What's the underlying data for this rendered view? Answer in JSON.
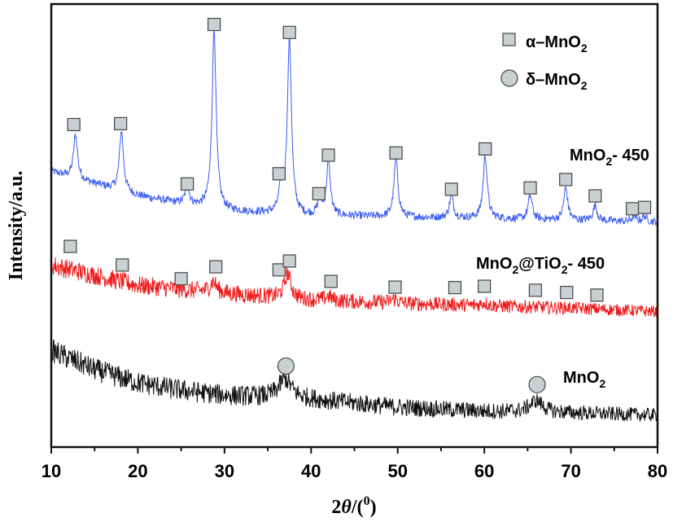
{
  "chart_data": {
    "type": "line",
    "xlabel_prefix": "2",
    "xlabel_theta": "θ",
    "xlabel_suffix": "/(",
    "xlabel_sup": "0",
    "xlabel_close": ")",
    "ylabel": "Intensity/a.u.",
    "xlim": [
      10,
      80
    ],
    "ylim": [
      0,
      100
    ],
    "xticks": [
      10,
      20,
      30,
      40,
      50,
      60,
      70,
      80
    ],
    "grid": false,
    "legend_position": "top-right",
    "legend": [
      {
        "marker": "square",
        "prefix": "α–MnO",
        "sub": "2"
      },
      {
        "marker": "circle",
        "prefix": "δ–MnO",
        "sub": "2"
      }
    ],
    "marker_fill": "#c8d0d2",
    "series": [
      {
        "name_prefix": "MnO",
        "name_sub": "2",
        "name_suffix": "- 450",
        "color": "#3b5cf0",
        "background": [
          [
            10,
            62.2
          ],
          [
            15,
            59.4
          ],
          [
            20,
            56.7
          ],
          [
            25,
            54.9
          ],
          [
            30,
            53.4
          ],
          [
            35,
            52.7
          ],
          [
            40,
            52.1
          ],
          [
            45,
            52.1
          ],
          [
            50,
            51.9
          ],
          [
            60,
            51.6
          ],
          [
            70,
            51.2
          ],
          [
            80,
            50.8
          ]
        ],
        "peaks": [
          [
            12.8,
            70.5
          ],
          [
            18.1,
            71.4
          ],
          [
            25.7,
            58.9
          ],
          [
            28.8,
            94.3
          ],
          [
            36.6,
            59.4
          ],
          [
            37.5,
            91.9
          ],
          [
            41.0,
            55.8
          ],
          [
            42.0,
            64.0
          ],
          [
            49.8,
            65.0
          ],
          [
            56.2,
            56.7
          ],
          [
            60.1,
            65.9
          ],
          [
            65.3,
            56.7
          ],
          [
            69.4,
            58.5
          ],
          [
            72.8,
            54.5
          ],
          [
            77.3,
            52.1
          ],
          [
            78.5,
            52.1
          ]
        ],
        "markers": {
          "type": "square",
          "points": [
            [
              12.6,
              72.8
            ],
            [
              18.0,
              73.0
            ],
            [
              25.7,
              59.4
            ],
            [
              28.8,
              95.4
            ],
            [
              36.3,
              61.7
            ],
            [
              37.5,
              93.6
            ],
            [
              40.9,
              57.2
            ],
            [
              42.0,
              65.9
            ],
            [
              49.8,
              66.4
            ],
            [
              56.2,
              58.2
            ],
            [
              60.1,
              67.3
            ],
            [
              65.3,
              58.5
            ],
            [
              69.4,
              60.4
            ],
            [
              72.8,
              56.7
            ],
            [
              77.1,
              53.8
            ],
            [
              78.5,
              54.1
            ]
          ]
        }
      },
      {
        "name_prefix": "MnO",
        "name_sub": "2",
        "name_mid": "@TiO",
        "name_sub2": "2",
        "name_suffix": "- 450",
        "color": "#f01818",
        "background": [
          [
            10,
            41.1
          ],
          [
            20,
            36.5
          ],
          [
            30,
            34.7
          ],
          [
            40,
            33.2
          ],
          [
            50,
            32.5
          ],
          [
            60,
            31.9
          ],
          [
            70,
            31.4
          ],
          [
            80,
            30.6
          ]
        ],
        "peaks": [
          [
            28.7,
            37.4
          ],
          [
            37.3,
            39.3
          ],
          [
            42.0,
            34.0
          ],
          [
            49.6,
            33.5
          ],
          [
            60.0,
            32.6
          ]
        ],
        "markers": {
          "type": "square",
          "points": [
            [
              12.2,
              45.3
            ],
            [
              18.2,
              41.1
            ],
            [
              25.0,
              38.0
            ],
            [
              29.0,
              40.7
            ],
            [
              36.3,
              40.0
            ],
            [
              37.5,
              42.0
            ],
            [
              42.3,
              37.4
            ],
            [
              49.7,
              36.1
            ],
            [
              56.6,
              36.0
            ],
            [
              60.0,
              36.3
            ],
            [
              65.9,
              35.4
            ],
            [
              69.5,
              34.9
            ],
            [
              73.0,
              34.3
            ]
          ]
        }
      },
      {
        "name_prefix": "MnO",
        "name_sub": "2",
        "name_suffix": "",
        "color": "#111111",
        "background": [
          [
            10,
            21.8
          ],
          [
            15,
            17.5
          ],
          [
            20,
            14.5
          ],
          [
            25,
            12.8
          ],
          [
            30,
            11.7
          ],
          [
            35,
            11.2
          ],
          [
            40,
            10.8
          ],
          [
            50,
            9.0
          ],
          [
            60,
            8.1
          ],
          [
            70,
            7.7
          ],
          [
            80,
            7.2
          ]
        ],
        "peaks": [
          [
            37.0,
            15.4
          ],
          [
            66.0,
            10.5
          ]
        ],
        "markers": {
          "type": "circle",
          "points": [
            [
              37.1,
              18.3
            ],
            [
              66.1,
              14.1
            ]
          ]
        }
      }
    ]
  }
}
